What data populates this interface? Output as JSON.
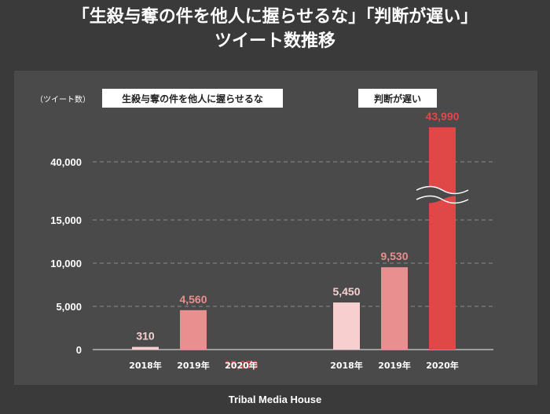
{
  "title_line1": "「生殺与奪の件を他人に握らせるな」「判断が遅い」",
  "title_line2": "ツイート数推移",
  "footer": "Tribal Media House",
  "colors": {
    "bar_2018": "#f8cfcf",
    "bar_2019": "#e98f8f",
    "bar_2020": "#e04848"
  },
  "chart_data": {
    "type": "bar",
    "ylabel": "（ツイート数）",
    "y_ticks": [
      "0",
      "5,000",
      "10,000",
      "15,000",
      "40,000"
    ],
    "y_tick_values": [
      0,
      5000,
      10000,
      15000,
      40000
    ],
    "axis_break": true,
    "groups": [
      {
        "name": "生殺与奪の件を他人に握らせるな",
        "categories": [
          "2018年",
          "2019年",
          "2020年"
        ],
        "values": [
          310,
          4560,
          15270
        ],
        "labels": [
          "310",
          "4,560",
          "15,270"
        ]
      },
      {
        "name": "判断が遅い",
        "categories": [
          "2018年",
          "2019年",
          "2020年"
        ],
        "values": [
          5450,
          9530,
          43990
        ],
        "labels": [
          "5,450",
          "9,530",
          "43,990"
        ]
      }
    ]
  }
}
